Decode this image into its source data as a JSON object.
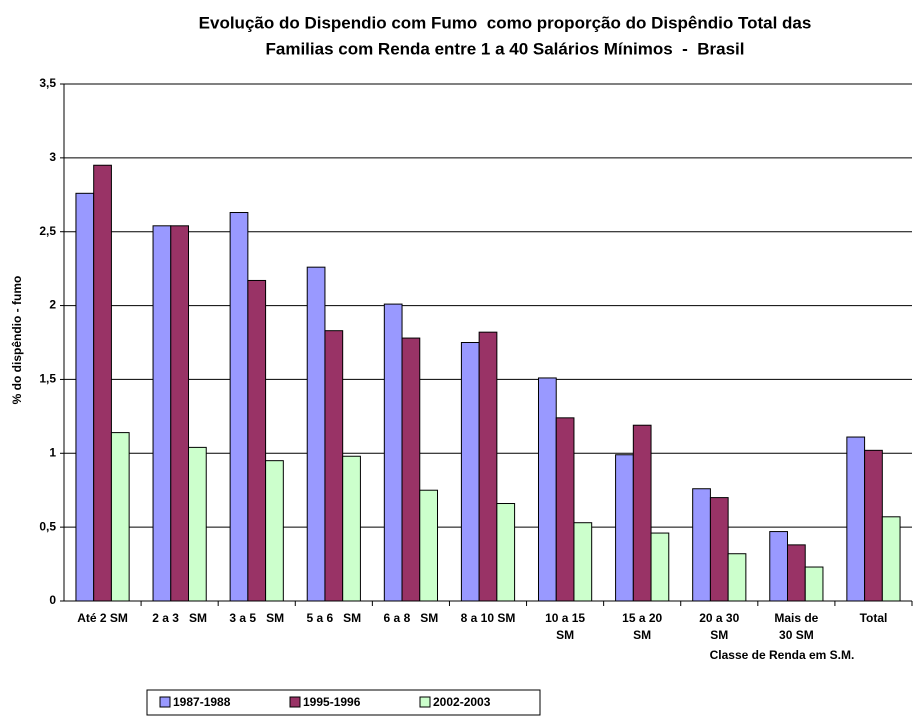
{
  "chart_data": {
    "type": "bar",
    "title": "Evolução do Dispendio com Fumo  como proporção do Dispêndio Total das",
    "subtitle": "Familias com Renda entre 1 a 40 Salários Mínimos  -  Brasil",
    "y_label": "% do dispêndio - fumo",
    "x_label": "Classe de Renda em S.M.",
    "categories": [
      "Até 2 SM",
      "2 a 3   SM",
      "3 a 5   SM",
      "5 a 6   SM",
      "6 a 8   SM",
      "8 a 10 SM",
      "10 a 15\nSM",
      "15 a 20\nSM",
      "20 a 30\nSM",
      "Mais de\n30 SM",
      "Total"
    ],
    "series": [
      {
        "name": "1987-1988",
        "color": "#9999ff",
        "values": [
          2.76,
          2.54,
          2.63,
          2.26,
          2.01,
          1.75,
          1.51,
          0.99,
          0.76,
          0.47,
          1.11
        ]
      },
      {
        "name": "1995-1996",
        "color": "#993366",
        "values": [
          2.95,
          2.54,
          2.17,
          1.83,
          1.78,
          1.82,
          1.24,
          1.19,
          0.7,
          0.38,
          1.02
        ]
      },
      {
        "name": "2002-2003",
        "color": "#ccffcc",
        "values": [
          1.14,
          1.04,
          0.95,
          0.98,
          0.75,
          0.66,
          0.53,
          0.46,
          0.32,
          0.23,
          0.57
        ]
      }
    ],
    "ylim": [
      0,
      3.5
    ],
    "yticks": [
      0,
      {
        "value": 0.5,
        "label": "0,5"
      },
      1,
      {
        "value": 1.5,
        "label": "1,5"
      },
      2,
      {
        "value": 2.5,
        "label": "2,5"
      },
      3,
      {
        "value": 3.5,
        "label": "3,5"
      }
    ],
    "grid": true,
    "legend": "bottom"
  }
}
